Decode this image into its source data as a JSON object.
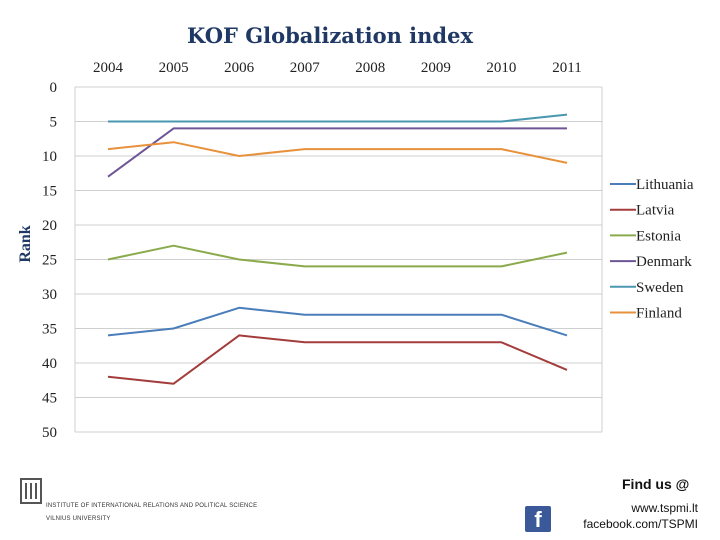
{
  "chart_data": {
    "type": "line",
    "title": "KOF Globalization index",
    "xlabel": "",
    "ylabel": "Rank",
    "x": [
      "2004",
      "2005",
      "2006",
      "2007",
      "2008",
      "2009",
      "2010",
      "2011"
    ],
    "ylim": [
      0,
      50
    ],
    "yticks": [
      0,
      5,
      10,
      15,
      20,
      25,
      30,
      35,
      40,
      45,
      50
    ],
    "y_inverted": true,
    "grid": "horizontal",
    "legend": "right",
    "series": [
      {
        "name": "Lithuania",
        "color": "#4a7ebb",
        "values": [
          36,
          35,
          32,
          33,
          33,
          33,
          33,
          36
        ]
      },
      {
        "name": "Latvia",
        "color": "#a33d3b",
        "values": [
          42,
          43,
          36,
          37,
          37,
          37,
          37,
          41
        ]
      },
      {
        "name": "Estonia",
        "color": "#8aaa4c",
        "values": [
          25,
          23,
          25,
          26,
          26,
          26,
          26,
          24
        ]
      },
      {
        "name": "Denmark",
        "color": "#6e5596",
        "values": [
          13,
          6,
          6,
          6,
          6,
          6,
          6,
          6
        ]
      },
      {
        "name": "Sweden",
        "color": "#4a97b0",
        "values": [
          5,
          5,
          5,
          5,
          5,
          5,
          5,
          4
        ]
      },
      {
        "name": "Finland",
        "color": "#e8913c",
        "values": [
          9,
          8,
          10,
          9,
          9,
          9,
          9,
          11
        ]
      }
    ]
  },
  "footer": {
    "find_us": "Find us @",
    "website": "www.tspmi.lt",
    "facebook": "facebook.com/TSPMI",
    "institute_line1": "INSTITUTE OF INTERNATIONAL RELATIONS AND POLITICAL SCIENCE",
    "institute_line2": "VILNIUS UNIVERSITY",
    "facebook_icon_letter": "f"
  }
}
